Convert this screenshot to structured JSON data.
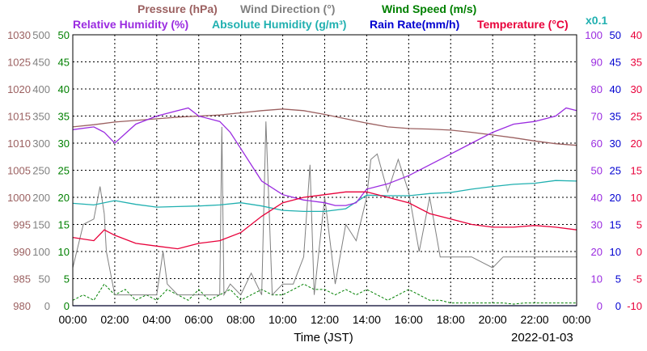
{
  "chart_data": {
    "type": "line",
    "date": "2022-01-03",
    "xlabel": "Time (JST)",
    "x_ticks": [
      "00:00",
      "02:00",
      "04:00",
      "06:00",
      "08:00",
      "10:00",
      "12:00",
      "14:00",
      "16:00",
      "18:00",
      "20:00",
      "22:00",
      "00:00"
    ],
    "x_range": [
      0,
      24
    ],
    "axes": {
      "pressure": {
        "label": "Pressure (hPa)",
        "ticks": [
          "980",
          "985",
          "990",
          "995",
          "1000",
          "1005",
          "1010",
          "1015",
          "1020",
          "1025",
          "1030"
        ],
        "range": [
          980,
          1030
        ],
        "color": "#9b6060"
      },
      "wind_dir": {
        "label": "Wind Direction (°)",
        "ticks": [
          "0",
          "50",
          "100",
          "150",
          "200",
          "250",
          "300",
          "350",
          "400",
          "450",
          "500"
        ],
        "range": [
          0,
          500
        ],
        "color": "#808080"
      },
      "wind_speed": {
        "label": "Wind Speed (m/s)",
        "ticks": [
          "0",
          "5",
          "10",
          "15",
          "20",
          "25",
          "30",
          "35",
          "40",
          "45",
          "50"
        ],
        "range": [
          0,
          50
        ],
        "color": "#008000"
      },
      "rel_humidity": {
        "label": "Relative Humidity (%)",
        "ticks": [
          "0",
          "10",
          "20",
          "30",
          "40",
          "50",
          "60",
          "70",
          "80",
          "90",
          "100"
        ],
        "range": [
          0,
          100
        ],
        "color": "#9a2be0"
      },
      "abs_humidity": {
        "label": "Absolute Humidity (g/m³)",
        "note": "x0.1",
        "ticks": [
          "0",
          "5",
          "10",
          "15",
          "20",
          "25",
          "30",
          "35",
          "40",
          "45",
          "50"
        ],
        "range": [
          0,
          50
        ],
        "color": "#20b0b0"
      },
      "rain_rate": {
        "label": "Rain Rate(mm/h)",
        "ticks": [
          "0",
          "5",
          "10",
          "15",
          "20",
          "25",
          "30",
          "35",
          "40",
          "45",
          "50"
        ],
        "range": [
          0,
          50
        ],
        "color": "#0000d0"
      },
      "temperature": {
        "label": "Temperature (°C)",
        "ticks": [
          "-10",
          "-5",
          "0",
          "5",
          "10",
          "15",
          "20",
          "25",
          "30",
          "35",
          "40"
        ],
        "range": [
          -10,
          40
        ],
        "color": "#e8003a"
      }
    },
    "series": [
      {
        "name": "Pressure (hPa)",
        "axis": "pressure",
        "color": "#9b6060",
        "x": [
          0,
          1,
          2,
          3,
          4,
          5,
          6,
          7,
          8,
          9,
          10,
          11,
          12,
          13,
          14,
          15,
          16,
          17,
          18,
          19,
          20,
          21,
          22,
          23,
          24
        ],
        "y": [
          1013,
          1013.4,
          1013.9,
          1014.2,
          1014.5,
          1014.8,
          1015.0,
          1015.2,
          1015.6,
          1016.0,
          1016.3,
          1016.0,
          1015.3,
          1014.5,
          1013.7,
          1013.0,
          1012.7,
          1012.6,
          1012.4,
          1012.0,
          1011.5,
          1011.0,
          1010.4,
          1009.9,
          1009.6
        ]
      },
      {
        "name": "Relative Humidity (%)",
        "axis": "rel_humidity",
        "color": "#9a2be0",
        "x": [
          0,
          1,
          1.5,
          2,
          3,
          4,
          5,
          5.5,
          6,
          7,
          7.5,
          8,
          9,
          10,
          11,
          12,
          12.5,
          13,
          13.5,
          14,
          15,
          16,
          17,
          18,
          19,
          20,
          21,
          22,
          23,
          23.5,
          24
        ],
        "y": [
          65,
          66,
          64,
          60,
          67,
          70,
          72,
          73,
          70,
          68,
          64,
          58,
          46,
          41,
          39,
          38,
          37,
          37,
          38,
          43,
          45,
          48,
          52,
          56,
          60,
          64,
          67,
          68,
          70,
          73,
          72
        ]
      },
      {
        "name": "Absolute Humidity (g/m³) x0.1",
        "axis": "abs_humidity",
        "color": "#20b0b0",
        "x": [
          0,
          1,
          2,
          3,
          4,
          5,
          6,
          7,
          8,
          9,
          10,
          11,
          12,
          13,
          14,
          15,
          16,
          17,
          18,
          19,
          20,
          21,
          22,
          23,
          24
        ],
        "y": [
          18.9,
          18.6,
          19.4,
          18.7,
          18.2,
          18.3,
          18.4,
          18.6,
          19.0,
          18.4,
          17.6,
          17.4,
          17.4,
          17.9,
          20.4,
          20.3,
          20.3,
          20.7,
          20.9,
          21.5,
          22.0,
          22.4,
          22.6,
          23.1,
          23.0
        ]
      },
      {
        "name": "Rain Rate(mm/h)",
        "axis": "rain_rate",
        "color": "#0000d0",
        "x": [
          0,
          12.5,
          12.6,
          13.9,
          14.0,
          24
        ],
        "y": [
          0,
          0,
          0,
          0,
          0,
          0
        ]
      },
      {
        "name": "Temperature (°C)",
        "axis": "temperature",
        "color": "#e8003a",
        "x": [
          0,
          1,
          1.5,
          2,
          3,
          4,
          5,
          6,
          7,
          8,
          9,
          10,
          11,
          12,
          13,
          14,
          15,
          16,
          17,
          18,
          19,
          20,
          21,
          22,
          23,
          24
        ],
        "y": [
          2.6,
          2.0,
          4.0,
          3.0,
          1.5,
          1.0,
          0.5,
          1.5,
          2.0,
          3.5,
          6.5,
          9.0,
          10.0,
          10.5,
          11.0,
          11.0,
          10.0,
          9.0,
          7.0,
          6.0,
          5.0,
          4.5,
          4.5,
          4.8,
          4.5,
          4.0
        ]
      },
      {
        "name": "Wind Direction (°)",
        "axis": "wind_dir",
        "color": "#808080",
        "x": [
          0,
          0.5,
          1,
          1.3,
          1.5,
          1.6,
          2,
          3,
          4,
          4.3,
          4.5,
          5,
          6,
          7,
          7.1,
          7.2,
          7.5,
          8,
          8.5,
          9,
          9.2,
          9.5,
          10,
          10.5,
          11,
          11.3,
          11.5,
          12,
          12.5,
          13,
          13.5,
          14,
          14.2,
          14.5,
          15,
          15.5,
          16,
          16.5,
          17,
          17.5,
          18,
          19,
          20,
          20.5,
          21,
          22,
          23,
          24
        ],
        "y": [
          70,
          150,
          160,
          220,
          170,
          100,
          20,
          20,
          20,
          100,
          40,
          20,
          20,
          20,
          330,
          20,
          40,
          20,
          60,
          20,
          340,
          20,
          40,
          40,
          90,
          260,
          20,
          200,
          40,
          150,
          120,
          200,
          270,
          280,
          210,
          270,
          210,
          100,
          200,
          90,
          90,
          90,
          70,
          90,
          90,
          90,
          90,
          90
        ]
      },
      {
        "name": "Wind Speed (m/s)",
        "axis": "wind_speed",
        "color": "#008000",
        "x": [
          0,
          0.5,
          1,
          1.5,
          2,
          2.5,
          3,
          3.5,
          4,
          4.5,
          5,
          5.5,
          6,
          6.5,
          7,
          7.5,
          8,
          8.5,
          9,
          9.5,
          10,
          10.5,
          11,
          11.5,
          12,
          12.5,
          13,
          13.5,
          14,
          14.5,
          15,
          15.5,
          16,
          16.5,
          17,
          17.5,
          18,
          18.5,
          19,
          19.5,
          20,
          20.5,
          21,
          21.5,
          22,
          22.5,
          23,
          23.5,
          24
        ],
        "y": [
          1,
          2,
          1,
          4,
          2,
          3,
          1,
          2,
          1,
          3,
          2,
          1,
          3,
          1,
          2,
          3,
          1,
          2,
          3,
          2,
          2,
          3,
          4,
          3,
          3,
          2,
          3,
          2,
          3,
          2,
          1,
          2,
          3,
          2,
          1,
          1,
          0.5,
          0.5,
          0.5,
          0.5,
          0.5,
          0.5,
          0.3,
          0.5,
          0.5,
          0.5,
          0.5,
          0.5,
          0.5
        ]
      }
    ]
  }
}
